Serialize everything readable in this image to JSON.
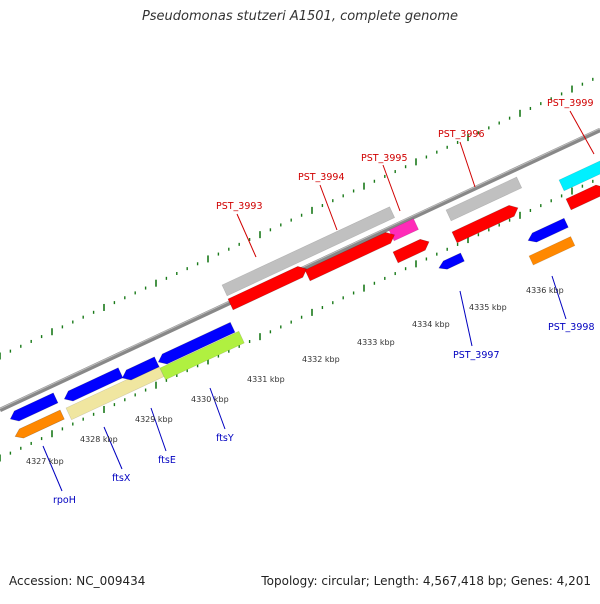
{
  "title": "Pseudomonas stutzeri A1501, complete genome",
  "footer": {
    "accession": "Accession: NC_009434",
    "summary": "Topology: circular; Length: 4,567,418 bp; Genes: 4,201"
  },
  "colors": {
    "top_labels": "#d00000",
    "bottom_labels": "#0000c0",
    "ticks": "#1a7a1a",
    "backbone": "#888888",
    "tick_text": "#333333"
  },
  "ticks": [
    "4327 kbp",
    "4328 kbp",
    "4329 kbp",
    "4330 kbp",
    "4331 kbp",
    "4332 kbp",
    "4333 kbp",
    "4334 kbp",
    "4335 kbp",
    "4336 kbp"
  ],
  "gene_labels": {
    "forward": [
      "PST_3993",
      "PST_3994",
      "PST_3995",
      "PST_3996",
      "PST_3999"
    ],
    "reverse": [
      "rpoH",
      "ftsX",
      "ftsE",
      "ftsY",
      "PST_3997",
      "PST_3998"
    ]
  },
  "track_colors": [
    "#ff0000",
    "#0000ff",
    "#ff8800",
    "#c0c0c0",
    "#f0e6a0",
    "#b0f040",
    "#ff2bb8",
    "#00f0ff"
  ]
}
